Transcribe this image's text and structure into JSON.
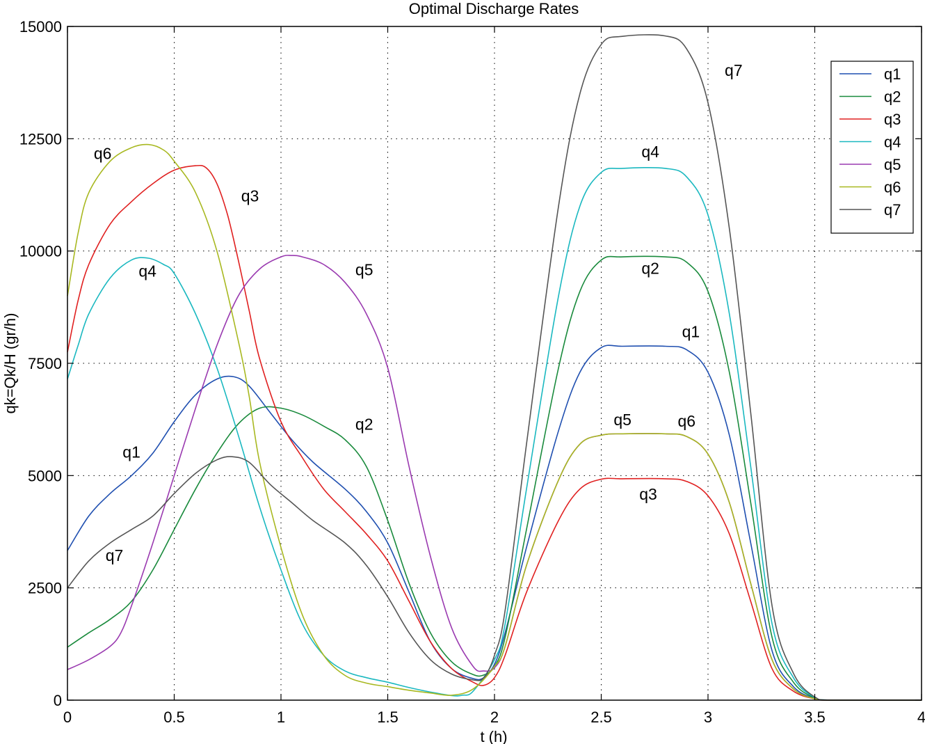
{
  "chart_data": {
    "type": "line",
    "title": "Optimal Discharge Rates",
    "xlabel": "t  (h)",
    "ylabel": "qk=Qk/H  (gr/h)",
    "xlim": [
      0,
      4
    ],
    "ylim": [
      0,
      15000
    ],
    "xticks": [
      0,
      0.5,
      1,
      1.5,
      2,
      2.5,
      3,
      3.5,
      4
    ],
    "xtick_labels": [
      "0",
      "0.5",
      "1",
      "1.5",
      "2",
      "2.5",
      "3",
      "3.5",
      "4"
    ],
    "yticks": [
      0,
      2500,
      5000,
      7500,
      10000,
      12500,
      15000
    ],
    "ytick_labels": [
      "0",
      "2500",
      "5000",
      "7500",
      "10000",
      "12500",
      "15000"
    ],
    "grid": true,
    "legend_position": "top-right",
    "series": [
      {
        "name": "q1",
        "color": "#1f4fb0",
        "points": [
          [
            0,
            3330
          ],
          [
            0.1,
            4100
          ],
          [
            0.2,
            4600
          ],
          [
            0.3,
            5000
          ],
          [
            0.4,
            5500
          ],
          [
            0.5,
            6200
          ],
          [
            0.6,
            6800
          ],
          [
            0.7,
            7150
          ],
          [
            0.78,
            7200
          ],
          [
            0.85,
            7000
          ],
          [
            0.95,
            6400
          ],
          [
            1.05,
            5800
          ],
          [
            1.15,
            5300
          ],
          [
            1.3,
            4700
          ],
          [
            1.4,
            4200
          ],
          [
            1.5,
            3500
          ],
          [
            1.6,
            2400
          ],
          [
            1.7,
            1300
          ],
          [
            1.8,
            700
          ],
          [
            1.9,
            480
          ],
          [
            1.95,
            500
          ],
          [
            2.0,
            800
          ],
          [
            2.05,
            1500
          ],
          [
            2.15,
            3400
          ],
          [
            2.3,
            6000
          ],
          [
            2.4,
            7300
          ],
          [
            2.5,
            7850
          ],
          [
            2.6,
            7880
          ],
          [
            2.8,
            7880
          ],
          [
            2.9,
            7800
          ],
          [
            3.0,
            7300
          ],
          [
            3.1,
            5900
          ],
          [
            3.2,
            3500
          ],
          [
            3.3,
            1100
          ],
          [
            3.4,
            300
          ],
          [
            3.5,
            40
          ],
          [
            3.58,
            0
          ],
          [
            4,
            0
          ]
        ]
      },
      {
        "name": "q2",
        "color": "#198a3c",
        "points": [
          [
            0,
            1180
          ],
          [
            0.1,
            1500
          ],
          [
            0.2,
            1800
          ],
          [
            0.3,
            2200
          ],
          [
            0.4,
            2900
          ],
          [
            0.5,
            3800
          ],
          [
            0.6,
            4700
          ],
          [
            0.7,
            5500
          ],
          [
            0.8,
            6150
          ],
          [
            0.9,
            6500
          ],
          [
            1.0,
            6500
          ],
          [
            1.1,
            6350
          ],
          [
            1.2,
            6100
          ],
          [
            1.3,
            5800
          ],
          [
            1.4,
            5200
          ],
          [
            1.5,
            4000
          ],
          [
            1.6,
            2600
          ],
          [
            1.7,
            1500
          ],
          [
            1.8,
            850
          ],
          [
            1.9,
            570
          ],
          [
            1.95,
            560
          ],
          [
            2.0,
            750
          ],
          [
            2.05,
            1400
          ],
          [
            2.15,
            3800
          ],
          [
            2.3,
            7400
          ],
          [
            2.4,
            9100
          ],
          [
            2.5,
            9800
          ],
          [
            2.6,
            9870
          ],
          [
            2.8,
            9870
          ],
          [
            2.9,
            9750
          ],
          [
            3.0,
            9100
          ],
          [
            3.1,
            7300
          ],
          [
            3.2,
            4400
          ],
          [
            3.3,
            1400
          ],
          [
            3.4,
            400
          ],
          [
            3.5,
            50
          ],
          [
            3.58,
            0
          ],
          [
            4,
            0
          ]
        ]
      },
      {
        "name": "q3",
        "color": "#e02020",
        "points": [
          [
            0,
            7750
          ],
          [
            0.05,
            8900
          ],
          [
            0.1,
            9700
          ],
          [
            0.2,
            10600
          ],
          [
            0.3,
            11100
          ],
          [
            0.4,
            11500
          ],
          [
            0.5,
            11800
          ],
          [
            0.6,
            11900
          ],
          [
            0.65,
            11850
          ],
          [
            0.7,
            11500
          ],
          [
            0.75,
            10800
          ],
          [
            0.8,
            9800
          ],
          [
            0.85,
            8700
          ],
          [
            0.9,
            7600
          ],
          [
            1.0,
            6200
          ],
          [
            1.1,
            5400
          ],
          [
            1.2,
            4700
          ],
          [
            1.3,
            4200
          ],
          [
            1.4,
            3700
          ],
          [
            1.5,
            3100
          ],
          [
            1.6,
            2200
          ],
          [
            1.7,
            1300
          ],
          [
            1.8,
            700
          ],
          [
            1.9,
            400
          ],
          [
            1.95,
            330
          ],
          [
            2.0,
            500
          ],
          [
            2.05,
            1000
          ],
          [
            2.15,
            2400
          ],
          [
            2.3,
            4000
          ],
          [
            2.4,
            4700
          ],
          [
            2.5,
            4920
          ],
          [
            2.6,
            4930
          ],
          [
            2.8,
            4930
          ],
          [
            2.9,
            4870
          ],
          [
            3.0,
            4550
          ],
          [
            3.1,
            3700
          ],
          [
            3.2,
            2200
          ],
          [
            3.3,
            700
          ],
          [
            3.4,
            200
          ],
          [
            3.5,
            30
          ],
          [
            3.58,
            0
          ],
          [
            4,
            0
          ]
        ]
      },
      {
        "name": "q4",
        "color": "#1ab8c0",
        "points": [
          [
            0,
            7150
          ],
          [
            0.05,
            7900
          ],
          [
            0.1,
            8600
          ],
          [
            0.2,
            9400
          ],
          [
            0.3,
            9800
          ],
          [
            0.38,
            9840
          ],
          [
            0.45,
            9700
          ],
          [
            0.5,
            9500
          ],
          [
            0.6,
            8600
          ],
          [
            0.7,
            7400
          ],
          [
            0.8,
            5900
          ],
          [
            0.9,
            4300
          ],
          [
            1.0,
            2900
          ],
          [
            1.1,
            1700
          ],
          [
            1.2,
            1000
          ],
          [
            1.3,
            650
          ],
          [
            1.4,
            500
          ],
          [
            1.5,
            400
          ],
          [
            1.6,
            280
          ],
          [
            1.7,
            180
          ],
          [
            1.8,
            100
          ],
          [
            1.85,
            110
          ],
          [
            1.9,
            200
          ],
          [
            2.0,
            900
          ],
          [
            2.05,
            1700
          ],
          [
            2.15,
            4700
          ],
          [
            2.3,
            9000
          ],
          [
            2.4,
            11000
          ],
          [
            2.5,
            11750
          ],
          [
            2.6,
            11840
          ],
          [
            2.8,
            11840
          ],
          [
            2.9,
            11650
          ],
          [
            3.0,
            10800
          ],
          [
            3.1,
            8600
          ],
          [
            3.2,
            5200
          ],
          [
            3.3,
            1700
          ],
          [
            3.4,
            500
          ],
          [
            3.5,
            60
          ],
          [
            3.58,
            0
          ],
          [
            4,
            0
          ]
        ]
      },
      {
        "name": "q5",
        "color": "#9a3ab0",
        "points": [
          [
            0,
            680
          ],
          [
            0.1,
            900
          ],
          [
            0.2,
            1200
          ],
          [
            0.25,
            1500
          ],
          [
            0.3,
            2100
          ],
          [
            0.4,
            3500
          ],
          [
            0.5,
            5000
          ],
          [
            0.6,
            6500
          ],
          [
            0.7,
            7900
          ],
          [
            0.8,
            9000
          ],
          [
            0.9,
            9600
          ],
          [
            1.0,
            9870
          ],
          [
            1.05,
            9900
          ],
          [
            1.1,
            9870
          ],
          [
            1.2,
            9700
          ],
          [
            1.3,
            9300
          ],
          [
            1.4,
            8600
          ],
          [
            1.5,
            7400
          ],
          [
            1.6,
            5200
          ],
          [
            1.7,
            3200
          ],
          [
            1.8,
            1600
          ],
          [
            1.9,
            750
          ],
          [
            1.95,
            650
          ],
          [
            2.0,
            720
          ],
          [
            2.05,
            1200
          ],
          [
            2.15,
            3000
          ],
          [
            2.3,
            4900
          ],
          [
            2.4,
            5700
          ],
          [
            2.5,
            5900
          ],
          [
            2.6,
            5930
          ],
          [
            2.8,
            5930
          ],
          [
            2.9,
            5870
          ],
          [
            3.0,
            5480
          ],
          [
            3.1,
            4400
          ],
          [
            3.2,
            2600
          ],
          [
            3.3,
            900
          ],
          [
            3.4,
            250
          ],
          [
            3.5,
            30
          ],
          [
            3.58,
            0
          ],
          [
            4,
            0
          ]
        ]
      },
      {
        "name": "q6",
        "color": "#a8b820",
        "points": [
          [
            0,
            9000
          ],
          [
            0.05,
            10400
          ],
          [
            0.1,
            11300
          ],
          [
            0.2,
            12000
          ],
          [
            0.3,
            12300
          ],
          [
            0.38,
            12370
          ],
          [
            0.45,
            12250
          ],
          [
            0.5,
            12000
          ],
          [
            0.6,
            11300
          ],
          [
            0.7,
            10000
          ],
          [
            0.8,
            8000
          ],
          [
            0.85,
            6800
          ],
          [
            0.9,
            5300
          ],
          [
            1.0,
            3400
          ],
          [
            1.1,
            1900
          ],
          [
            1.2,
            1000
          ],
          [
            1.3,
            550
          ],
          [
            1.4,
            380
          ],
          [
            1.5,
            300
          ],
          [
            1.6,
            220
          ],
          [
            1.7,
            160
          ],
          [
            1.8,
            110
          ],
          [
            1.9,
            250
          ],
          [
            2.0,
            750
          ],
          [
            2.05,
            1200
          ],
          [
            2.15,
            3000
          ],
          [
            2.3,
            4900
          ],
          [
            2.4,
            5700
          ],
          [
            2.5,
            5900
          ],
          [
            2.6,
            5930
          ],
          [
            2.8,
            5930
          ],
          [
            2.9,
            5870
          ],
          [
            3.0,
            5480
          ],
          [
            3.1,
            4400
          ],
          [
            3.2,
            2600
          ],
          [
            3.3,
            900
          ],
          [
            3.4,
            250
          ],
          [
            3.5,
            30
          ],
          [
            3.58,
            0
          ],
          [
            4,
            0
          ]
        ]
      },
      {
        "name": "q7",
        "color": "#555555",
        "points": [
          [
            0,
            2500
          ],
          [
            0.1,
            3100
          ],
          [
            0.2,
            3500
          ],
          [
            0.3,
            3800
          ],
          [
            0.4,
            4100
          ],
          [
            0.5,
            4600
          ],
          [
            0.6,
            5050
          ],
          [
            0.7,
            5350
          ],
          [
            0.77,
            5420
          ],
          [
            0.85,
            5300
          ],
          [
            0.95,
            4800
          ],
          [
            1.05,
            4400
          ],
          [
            1.15,
            4000
          ],
          [
            1.3,
            3500
          ],
          [
            1.4,
            3000
          ],
          [
            1.5,
            2300
          ],
          [
            1.6,
            1500
          ],
          [
            1.7,
            900
          ],
          [
            1.8,
            580
          ],
          [
            1.9,
            450
          ],
          [
            1.95,
            500
          ],
          [
            2.0,
            1000
          ],
          [
            2.05,
            2000
          ],
          [
            2.15,
            5700
          ],
          [
            2.3,
            11000
          ],
          [
            2.4,
            13500
          ],
          [
            2.5,
            14600
          ],
          [
            2.6,
            14780
          ],
          [
            2.8,
            14790
          ],
          [
            2.9,
            14500
          ],
          [
            3.0,
            13300
          ],
          [
            3.1,
            10500
          ],
          [
            3.2,
            6400
          ],
          [
            3.3,
            2100
          ],
          [
            3.4,
            600
          ],
          [
            3.5,
            70
          ],
          [
            3.58,
            0
          ],
          [
            4,
            0
          ]
        ]
      }
    ],
    "annotations": [
      {
        "text": "q6",
        "x": 0.165,
        "y": 12050
      },
      {
        "text": "q3",
        "x": 0.855,
        "y": 11100
      },
      {
        "text": "q4",
        "x": 0.375,
        "y": 9430
      },
      {
        "text": "q5",
        "x": 1.39,
        "y": 9460
      },
      {
        "text": "q1",
        "x": 0.3,
        "y": 5400
      },
      {
        "text": "q2",
        "x": 1.39,
        "y": 6020
      },
      {
        "text": "q7",
        "x": 0.22,
        "y": 3100
      },
      {
        "text": "q7",
        "x": 3.12,
        "y": 13900
      },
      {
        "text": "q4",
        "x": 2.73,
        "y": 12090
      },
      {
        "text": "q2",
        "x": 2.73,
        "y": 9490
      },
      {
        "text": "q1",
        "x": 2.92,
        "y": 8080
      },
      {
        "text": "q5",
        "x": 2.6,
        "y": 6120
      },
      {
        "text": "q6",
        "x": 2.9,
        "y": 6090
      },
      {
        "text": "q3",
        "x": 2.72,
        "y": 4460
      }
    ]
  }
}
